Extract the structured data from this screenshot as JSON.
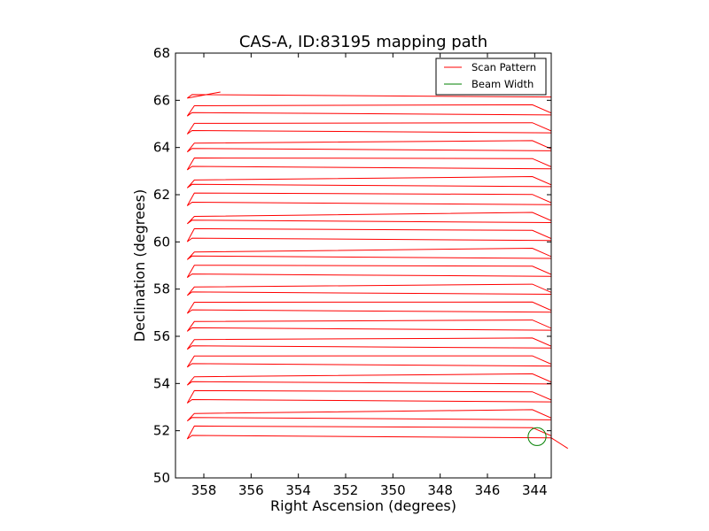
{
  "chart_data": {
    "type": "line",
    "title": "CAS-A, ID:83195 mapping path",
    "xlabel": "Right Ascension (degrees)",
    "ylabel": "Declination (degrees)",
    "xlim": [
      359.2,
      343.3
    ],
    "ylim": [
      50,
      68
    ],
    "xticks": [
      358,
      356,
      354,
      352,
      350,
      348,
      346,
      344
    ],
    "yticks": [
      50,
      52,
      54,
      56,
      58,
      60,
      62,
      64,
      66,
      68
    ],
    "grid": false,
    "legend_position": "top-right",
    "series": [
      {
        "name": "Scan Pattern",
        "color": "#ff0000",
        "pattern": {
          "ra_west": 358.5,
          "ra_east": 343.3,
          "dec_start": 51.7,
          "dec_end": 66.35,
          "row_spacing": 0.38
        }
      },
      {
        "name": "Beam Width",
        "color": "#008000",
        "marker": "circle",
        "center": [
          343.9,
          51.75
        ],
        "radius_deg": 0.38
      }
    ]
  }
}
